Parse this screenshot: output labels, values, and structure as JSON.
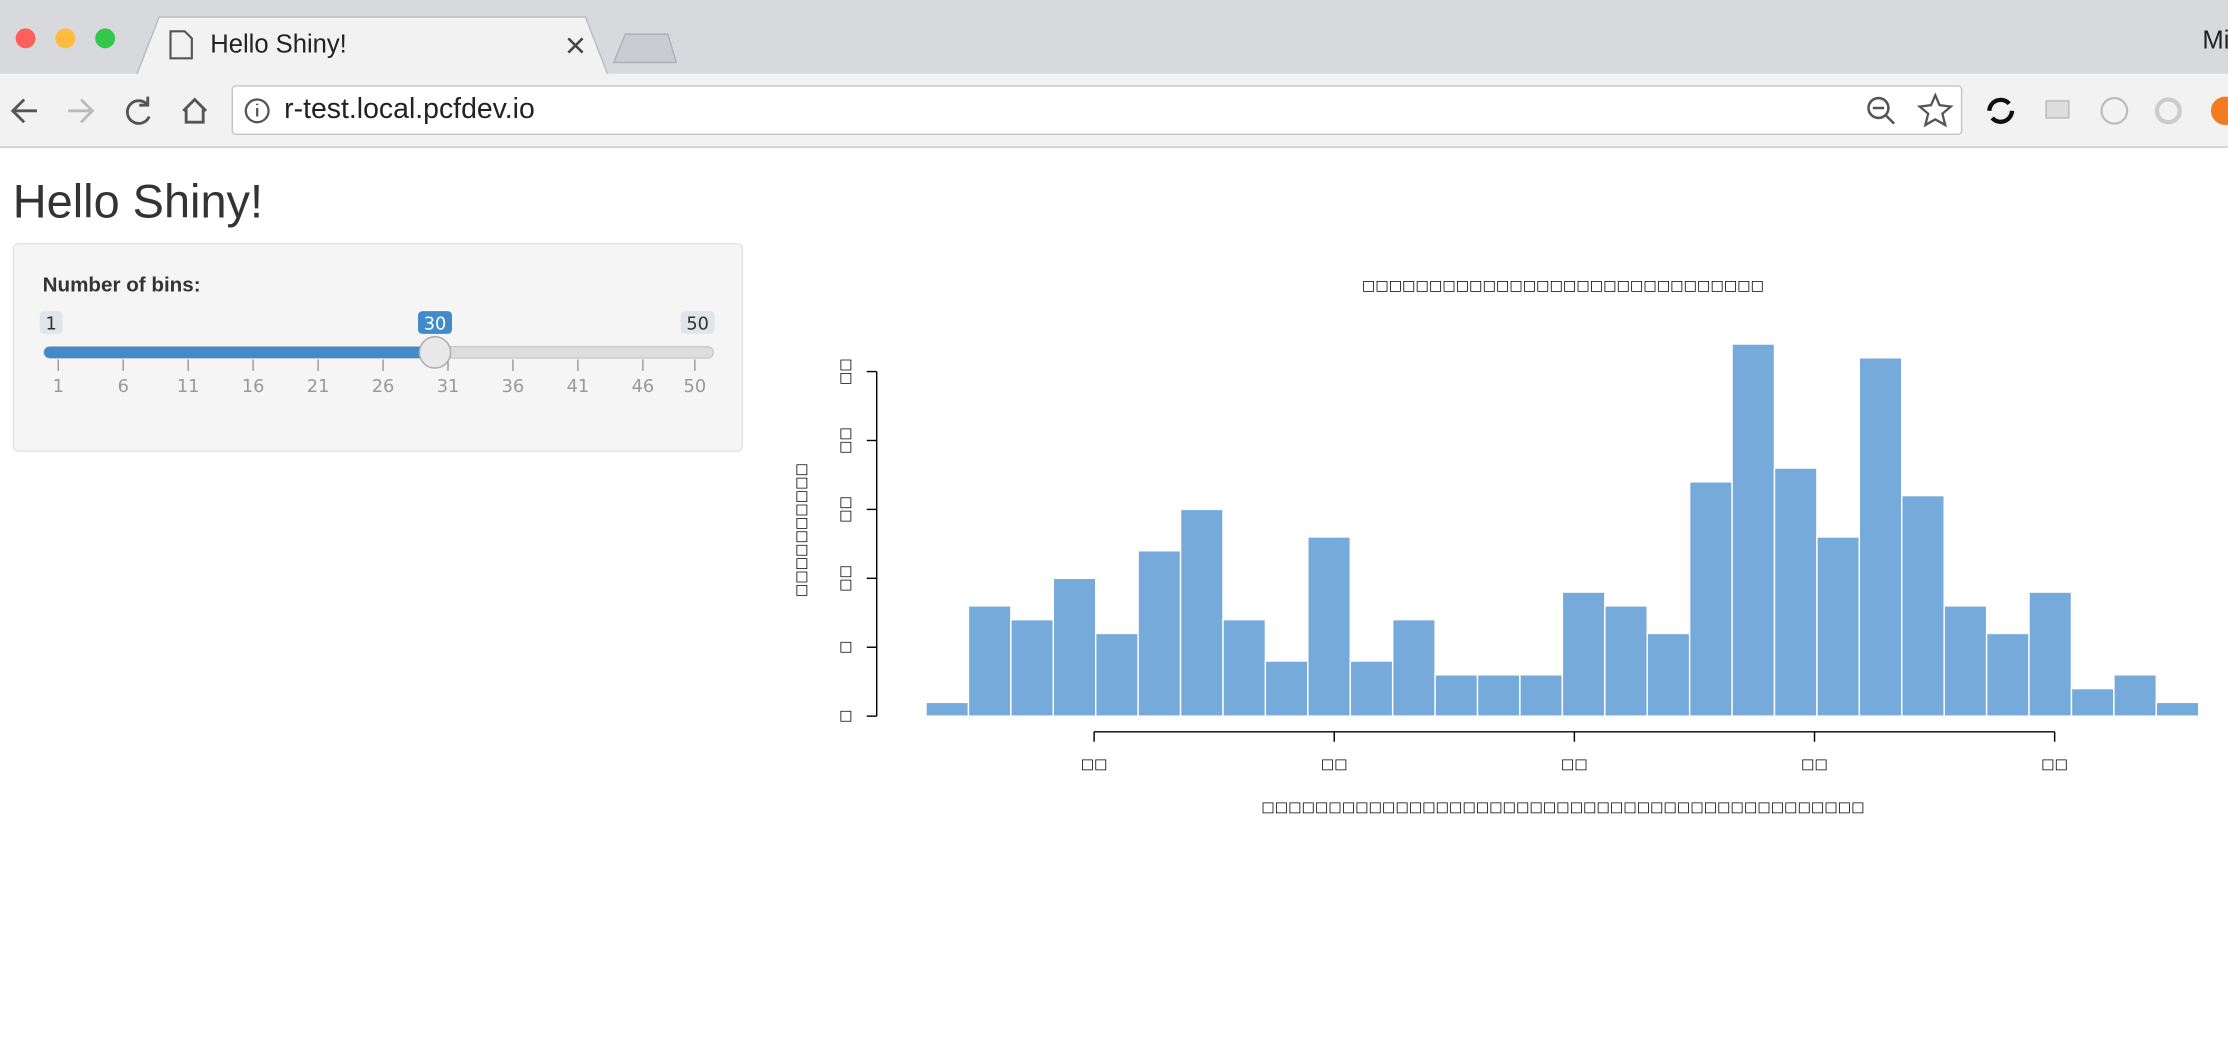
{
  "browser": {
    "tab_title": "Hello Shiny!",
    "url": "r-test.local.pcfdev.io",
    "profile": "Mi"
  },
  "page": {
    "title": "Hello Shiny!",
    "slider": {
      "label": "Number of bins:",
      "min": 1,
      "max": 50,
      "value": 30,
      "ticks": [
        1,
        6,
        11,
        16,
        21,
        26,
        31,
        36,
        41,
        46,
        50
      ]
    }
  },
  "chart_data": {
    "type": "histogram",
    "title": "□□□□□□□□□□□□□□□□□□□□□□□□□□□□□□",
    "xlabel": "□□□□□□□□□□□□□□□□□□□□□□□□□□□□□□□□□□□□□□□□□□□□□",
    "ylabel": "□□□□□□□□□□",
    "bins": [
      43,
      44.767,
      46.533,
      48.3,
      50.067,
      51.833,
      53.6,
      55.367,
      57.133,
      58.9,
      60.667,
      62.433,
      64.2,
      65.967,
      67.733,
      69.5,
      71.267,
      73.033,
      74.8,
      76.567,
      78.333,
      80.1,
      81.867,
      83.633,
      85.4,
      87.167,
      88.933,
      90.7,
      92.467,
      94.233,
      96
    ],
    "values": [
      1,
      8,
      7,
      10,
      6,
      12,
      15,
      7,
      4,
      13,
      4,
      7,
      3,
      3,
      3,
      9,
      8,
      6,
      17,
      27,
      18,
      13,
      26,
      16,
      8,
      6,
      9,
      2,
      3,
      1
    ],
    "color": "#75aadb",
    "edge_color": "#ffffff",
    "xlim": [
      43,
      96
    ],
    "ylim": [
      0,
      27
    ],
    "xticks": [
      {
        "value": 50,
        "label": "□□"
      },
      {
        "value": 60,
        "label": "□□"
      },
      {
        "value": 70,
        "label": "□□"
      },
      {
        "value": 80,
        "label": "□□"
      },
      {
        "value": 90,
        "label": "□□"
      }
    ],
    "yticks": [
      {
        "value": 0,
        "label": "□"
      },
      {
        "value": 5,
        "label": "□"
      },
      {
        "value": 10,
        "label": "□□"
      },
      {
        "value": 15,
        "label": "□□"
      },
      {
        "value": 20,
        "label": "□□"
      },
      {
        "value": 25,
        "label": "□□"
      }
    ]
  }
}
